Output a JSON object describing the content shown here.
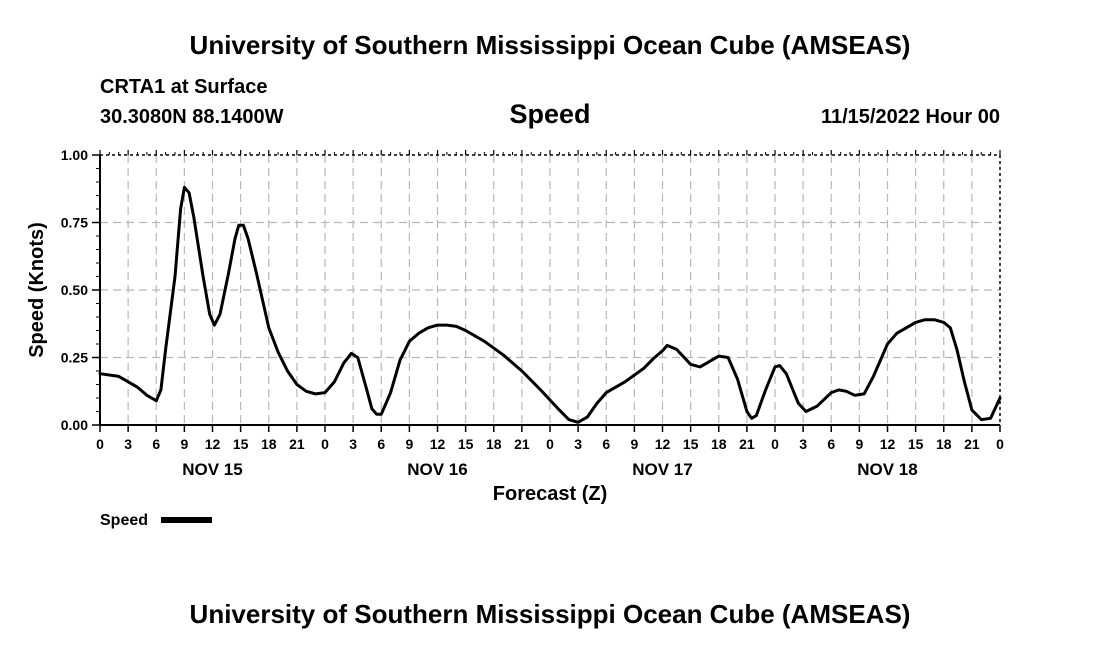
{
  "header": {
    "title": "University of Southern Mississippi Ocean Cube (AMSEAS)",
    "station": "CRTA1 at Surface",
    "location": "30.3080N  88.1400W",
    "variable": "Speed",
    "date": "11/15/2022 Hour 00"
  },
  "footer": {
    "title": "University of Southern Mississippi Ocean Cube (AMSEAS)"
  },
  "chart_data": {
    "type": "line",
    "title": "Speed",
    "xlabel": "Forecast (Z)",
    "ylabel": "Speed (Knots)",
    "xlim": [
      0,
      96
    ],
    "ylim": [
      0,
      1
    ],
    "grid": true,
    "yticks": [
      {
        "value": 0,
        "label": "0.00"
      },
      {
        "value": 0.25,
        "label": "0.25"
      },
      {
        "value": 0.5,
        "label": "0.50"
      },
      {
        "value": 0.75,
        "label": "0.75"
      },
      {
        "value": 1,
        "label": "1.00"
      }
    ],
    "xticks": [
      {
        "hour": 0,
        "label": "0"
      },
      {
        "hour": 3,
        "label": "3"
      },
      {
        "hour": 6,
        "label": "6"
      },
      {
        "hour": 9,
        "label": "9"
      },
      {
        "hour": 12,
        "label": "12"
      },
      {
        "hour": 15,
        "label": "15"
      },
      {
        "hour": 18,
        "label": "18"
      },
      {
        "hour": 21,
        "label": "21"
      },
      {
        "hour": 24,
        "label": "0"
      },
      {
        "hour": 27,
        "label": "3"
      },
      {
        "hour": 30,
        "label": "6"
      },
      {
        "hour": 33,
        "label": "9"
      },
      {
        "hour": 36,
        "label": "12"
      },
      {
        "hour": 39,
        "label": "15"
      },
      {
        "hour": 42,
        "label": "18"
      },
      {
        "hour": 45,
        "label": "21"
      },
      {
        "hour": 48,
        "label": "0"
      },
      {
        "hour": 51,
        "label": "3"
      },
      {
        "hour": 54,
        "label": "6"
      },
      {
        "hour": 57,
        "label": "9"
      },
      {
        "hour": 60,
        "label": "12"
      },
      {
        "hour": 63,
        "label": "15"
      },
      {
        "hour": 66,
        "label": "18"
      },
      {
        "hour": 69,
        "label": "21"
      },
      {
        "hour": 72,
        "label": "0"
      },
      {
        "hour": 75,
        "label": "3"
      },
      {
        "hour": 78,
        "label": "6"
      },
      {
        "hour": 81,
        "label": "9"
      },
      {
        "hour": 84,
        "label": "12"
      },
      {
        "hour": 87,
        "label": "15"
      },
      {
        "hour": 90,
        "label": "18"
      },
      {
        "hour": 93,
        "label": "21"
      },
      {
        "hour": 96,
        "label": "0"
      }
    ],
    "day_labels": [
      {
        "hour": 12,
        "label": "NOV 15"
      },
      {
        "hour": 36,
        "label": "NOV 16"
      },
      {
        "hour": 60,
        "label": "NOV 17"
      },
      {
        "hour": 84,
        "label": "NOV 18"
      }
    ],
    "legend": {
      "label": "Speed",
      "placement": "bottom-left"
    },
    "series": [
      {
        "name": "Speed",
        "color": "#000000",
        "points": [
          [
            0,
            0.19
          ],
          [
            2,
            0.18
          ],
          [
            3,
            0.16
          ],
          [
            4,
            0.14
          ],
          [
            5,
            0.11
          ],
          [
            6,
            0.09
          ],
          [
            6.5,
            0.13
          ],
          [
            7,
            0.28
          ],
          [
            8,
            0.55
          ],
          [
            8.6,
            0.8
          ],
          [
            9,
            0.88
          ],
          [
            9.5,
            0.86
          ],
          [
            10,
            0.77
          ],
          [
            11,
            0.55
          ],
          [
            11.7,
            0.41
          ],
          [
            12.2,
            0.37
          ],
          [
            12.8,
            0.41
          ],
          [
            13.7,
            0.56
          ],
          [
            14.4,
            0.69
          ],
          [
            14.8,
            0.74
          ],
          [
            15.3,
            0.74
          ],
          [
            15.8,
            0.69
          ],
          [
            16.7,
            0.56
          ],
          [
            18,
            0.36
          ],
          [
            19,
            0.27
          ],
          [
            20,
            0.2
          ],
          [
            21,
            0.15
          ],
          [
            22,
            0.125
          ],
          [
            23,
            0.115
          ],
          [
            24,
            0.12
          ],
          [
            25,
            0.16
          ],
          [
            26,
            0.23
          ],
          [
            26.8,
            0.265
          ],
          [
            27.5,
            0.25
          ],
          [
            28.3,
            0.15
          ],
          [
            29,
            0.06
          ],
          [
            29.5,
            0.04
          ],
          [
            30,
            0.04
          ],
          [
            31,
            0.12
          ],
          [
            32,
            0.24
          ],
          [
            33,
            0.31
          ],
          [
            34,
            0.34
          ],
          [
            35,
            0.36
          ],
          [
            36,
            0.37
          ],
          [
            37,
            0.37
          ],
          [
            38,
            0.365
          ],
          [
            39,
            0.35
          ],
          [
            41,
            0.31
          ],
          [
            43,
            0.26
          ],
          [
            45,
            0.2
          ],
          [
            47,
            0.13
          ],
          [
            49,
            0.055
          ],
          [
            50,
            0.02
          ],
          [
            51,
            0.01
          ],
          [
            52,
            0.03
          ],
          [
            53,
            0.08
          ],
          [
            54,
            0.12
          ],
          [
            56,
            0.16
          ],
          [
            58,
            0.21
          ],
          [
            59,
            0.245
          ],
          [
            60,
            0.275
          ],
          [
            60.5,
            0.295
          ],
          [
            61.5,
            0.28
          ],
          [
            63,
            0.225
          ],
          [
            64,
            0.215
          ],
          [
            65,
            0.235
          ],
          [
            66,
            0.255
          ],
          [
            67,
            0.25
          ],
          [
            68,
            0.17
          ],
          [
            69,
            0.05
          ],
          [
            69.5,
            0.025
          ],
          [
            70,
            0.035
          ],
          [
            71,
            0.13
          ],
          [
            72,
            0.215
          ],
          [
            72.5,
            0.22
          ],
          [
            73.2,
            0.19
          ],
          [
            74.5,
            0.08
          ],
          [
            75.3,
            0.05
          ],
          [
            76.5,
            0.07
          ],
          [
            78,
            0.12
          ],
          [
            78.8,
            0.13
          ],
          [
            79.6,
            0.125
          ],
          [
            80.5,
            0.11
          ],
          [
            81.5,
            0.115
          ],
          [
            82.5,
            0.18
          ],
          [
            84,
            0.3
          ],
          [
            85,
            0.34
          ],
          [
            86,
            0.36
          ],
          [
            87,
            0.38
          ],
          [
            88,
            0.39
          ],
          [
            89,
            0.39
          ],
          [
            90,
            0.38
          ],
          [
            90.7,
            0.36
          ],
          [
            91.4,
            0.28
          ],
          [
            92.2,
            0.16
          ],
          [
            93,
            0.055
          ],
          [
            94,
            0.02
          ],
          [
            95,
            0.025
          ],
          [
            96,
            0.1
          ]
        ]
      }
    ]
  }
}
